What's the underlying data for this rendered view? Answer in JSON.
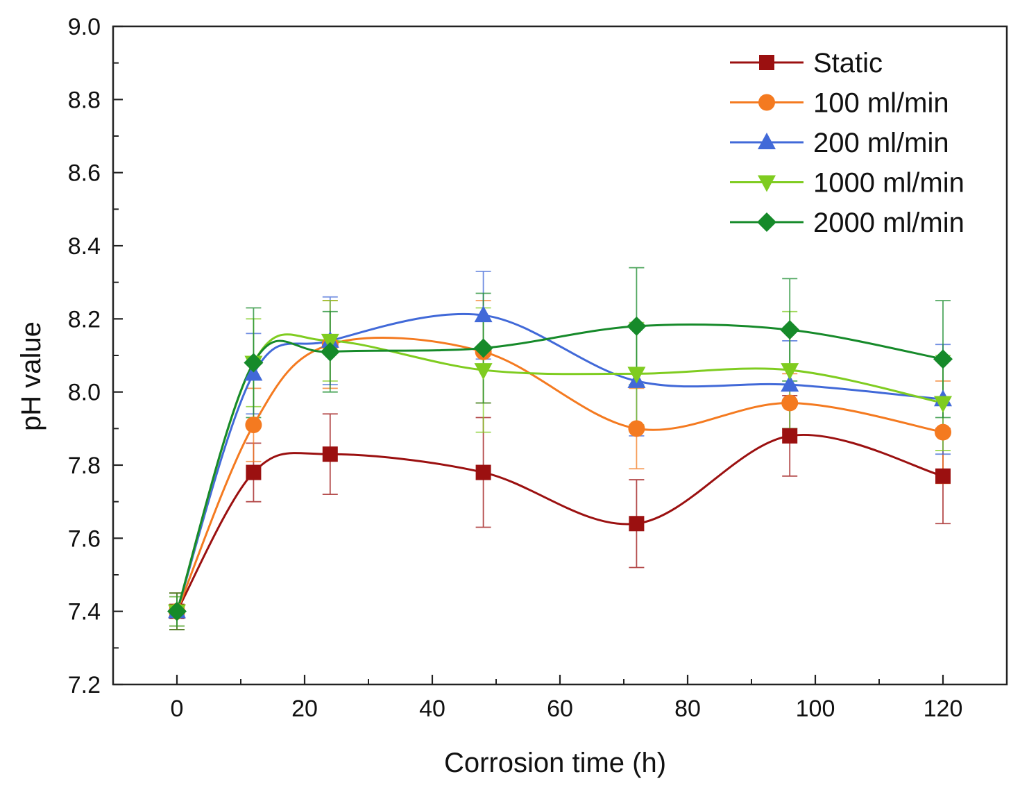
{
  "chart_data": {
    "type": "line",
    "title": "",
    "xlabel": "Corrosion time (h)",
    "ylabel": "pH value",
    "xlim": [
      -10,
      130
    ],
    "ylim": [
      7.2,
      9.0
    ],
    "xticks": [
      0,
      20,
      40,
      60,
      80,
      100,
      120
    ],
    "yticks": [
      7.2,
      7.4,
      7.6,
      7.8,
      8.0,
      8.2,
      8.4,
      8.6,
      8.8,
      9.0
    ],
    "x": [
      0,
      12,
      24,
      48,
      72,
      96,
      120
    ],
    "legend_position": "top-right",
    "series": [
      {
        "name": "Static",
        "marker": "square",
        "color": "#9B1010",
        "values": [
          7.4,
          7.78,
          7.83,
          7.78,
          7.64,
          7.88,
          7.77
        ],
        "errors": [
          0.05,
          0.08,
          0.11,
          0.15,
          0.12,
          0.11,
          0.13
        ]
      },
      {
        "name": "100 ml/min",
        "marker": "circle",
        "color": "#F47A20",
        "values": [
          7.4,
          7.91,
          8.13,
          8.11,
          7.9,
          7.97,
          7.89
        ],
        "errors": [
          0.05,
          0.1,
          0.12,
          0.14,
          0.11,
          0.08,
          0.14
        ]
      },
      {
        "name": "200 ml/min",
        "marker": "triangle-up",
        "color": "#4169D8",
        "values": [
          7.4,
          8.05,
          8.14,
          8.21,
          8.03,
          8.02,
          7.98
        ],
        "errors": [
          0.04,
          0.11,
          0.12,
          0.12,
          0.15,
          0.12,
          0.15
        ]
      },
      {
        "name": "1000 ml/min",
        "marker": "triangle-down",
        "color": "#7FCC20",
        "values": [
          7.4,
          8.08,
          8.14,
          8.06,
          8.05,
          8.06,
          7.97
        ],
        "errors": [
          0.04,
          0.12,
          0.11,
          0.17,
          0.14,
          0.16,
          0.13
        ]
      },
      {
        "name": "2000 ml/min",
        "marker": "diamond",
        "color": "#168A2A",
        "values": [
          7.4,
          8.08,
          8.11,
          8.12,
          8.18,
          8.17,
          8.09
        ],
        "errors": [
          0.05,
          0.15,
          0.11,
          0.15,
          0.16,
          0.14,
          0.16
        ]
      }
    ]
  }
}
